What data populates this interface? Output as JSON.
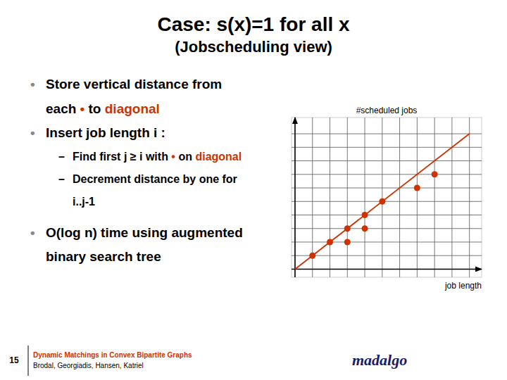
{
  "chart_data": {
    "type": "scatter",
    "title": "Case: s(x)=1 for all x",
    "subtitle": "(Jobscheduling view)",
    "annotations": [
      {
        "bullet": "•",
        "bullet_color": "#888888",
        "runs": [
          {
            "text": "Store vertical distance from"
          }
        ]
      },
      {
        "runs": [
          {
            "text": "each "
          },
          {
            "text": "•",
            "color": "#cc3300"
          },
          {
            "text": " to "
          },
          {
            "text": "diagonal",
            "color": "#cc3300"
          }
        ]
      },
      {
        "bullet": "•",
        "bullet_color": "#888888",
        "runs": [
          {
            "text": "Insert job length "
          },
          {
            "text": "i"
          },
          {
            "text": " :"
          }
        ]
      },
      {
        "bullet": "–",
        "runs": [
          {
            "text": "Find first "
          },
          {
            "text": "j"
          },
          {
            "text": " ≥ "
          },
          {
            "text": "i"
          },
          {
            "text": " with "
          },
          {
            "text": "•",
            "color": "#cc3300"
          },
          {
            "text": " on "
          },
          {
            "text": "diagonal",
            "color": "#cc3300"
          }
        ]
      },
      {
        "bullet": "–",
        "runs": [
          {
            "text": "Decrement distance by one for"
          }
        ]
      },
      {
        "runs": [
          {
            "text": "i..j-1"
          }
        ]
      },
      {
        "bullet": "•",
        "bullet_color": "#888888",
        "runs": [
          {
            "text": "O"
          },
          {
            "text": "(log "
          },
          {
            "text": "n"
          },
          {
            "text": ") time using augmented"
          }
        ]
      },
      {
        "runs": [
          {
            "text": "binary search tree"
          }
        ]
      }
    ],
    "footer": {
      "number": "15",
      "title": "Dynamic Matchings in Convex Bipartite Graphs",
      "title_color": "#cc3300",
      "authors": "Brodal, Georgiadis, Hansen, Katriel",
      "logo": "madalgo",
      "logo_color": "#1a1a6e"
    },
    "x_label": "job length",
    "y_label": "#scheduled jobs",
    "xlim": [
      -0.2,
      10.7
    ],
    "ylim": [
      -0.6,
      11.2
    ],
    "xticks": [
      0,
      1,
      2,
      3,
      4,
      5,
      6,
      7,
      8,
      9,
      10
    ],
    "yticks": [
      0,
      1,
      2,
      3,
      4,
      5,
      6,
      7,
      8,
      9,
      10
    ],
    "grid": true,
    "tick_labels": false,
    "series": [
      {
        "type": "line",
        "color": "#cc3300",
        "x": [
          0,
          10
        ],
        "values": [
          0,
          10
        ]
      },
      {
        "type": "scatter",
        "color": "#cc3300",
        "x": [
          1,
          2,
          3,
          3,
          4,
          4,
          5,
          7,
          8
        ],
        "values": [
          1,
          2,
          2,
          3,
          3,
          4,
          5,
          6,
          7
        ]
      }
    ]
  }
}
